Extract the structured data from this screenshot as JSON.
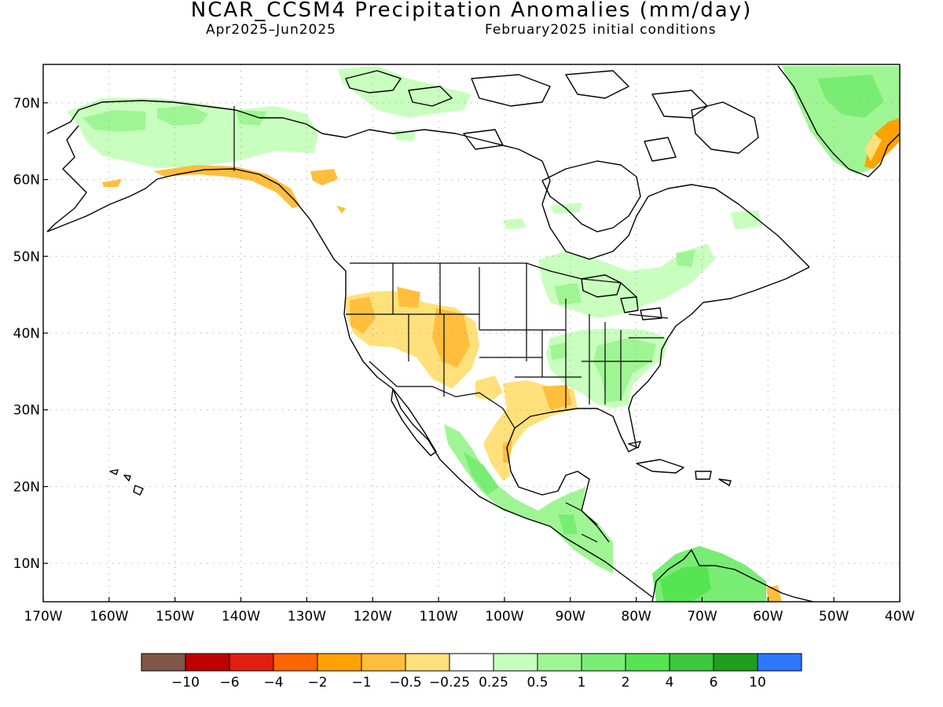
{
  "title": "NCAR_CCSM4 Precipitation Anomalies (mm/day)",
  "subtitle_left": "Apr2025–Jun2025",
  "subtitle_right": "February2025 initial conditions",
  "map": {
    "lon_range": [
      -170,
      -40
    ],
    "lat_range": [
      5,
      75
    ],
    "lat_ticks": [
      {
        "value": 70,
        "label": "70N"
      },
      {
        "value": 60,
        "label": "60N"
      },
      {
        "value": 50,
        "label": "50N"
      },
      {
        "value": 40,
        "label": "40N"
      },
      {
        "value": 30,
        "label": "30N"
      },
      {
        "value": 20,
        "label": "20N"
      },
      {
        "value": 10,
        "label": "10N"
      }
    ],
    "lon_ticks": [
      {
        "value": -170,
        "label": "170W"
      },
      {
        "value": -160,
        "label": "160W"
      },
      {
        "value": -150,
        "label": "150W"
      },
      {
        "value": -140,
        "label": "140W"
      },
      {
        "value": -130,
        "label": "130W"
      },
      {
        "value": -120,
        "label": "120W"
      },
      {
        "value": -110,
        "label": "110W"
      },
      {
        "value": -100,
        "label": "100W"
      },
      {
        "value": -90,
        "label": "90W"
      },
      {
        "value": -80,
        "label": "80W"
      },
      {
        "value": -70,
        "label": "70W"
      },
      {
        "value": -60,
        "label": "60W"
      },
      {
        "value": -50,
        "label": "50W"
      },
      {
        "value": -40,
        "label": "40W"
      }
    ],
    "grid": true
  },
  "colorbar": {
    "colors": [
      "#7f5647",
      "#c00000",
      "#e11f10",
      "#ff6600",
      "#ffa200",
      "#ffbe3c",
      "#ffe07a",
      "#ffffff",
      "#c8ffbe",
      "#9ff594",
      "#79ed73",
      "#55e452",
      "#3cc83c",
      "#1ea01e",
      "#2d78ff"
    ],
    "labels": [
      "−10",
      "−6",
      "−4",
      "−2",
      "−1",
      "−0.5",
      "−0.25",
      "0.25",
      "0.5",
      "1",
      "2",
      "4",
      "6",
      "10"
    ]
  }
}
